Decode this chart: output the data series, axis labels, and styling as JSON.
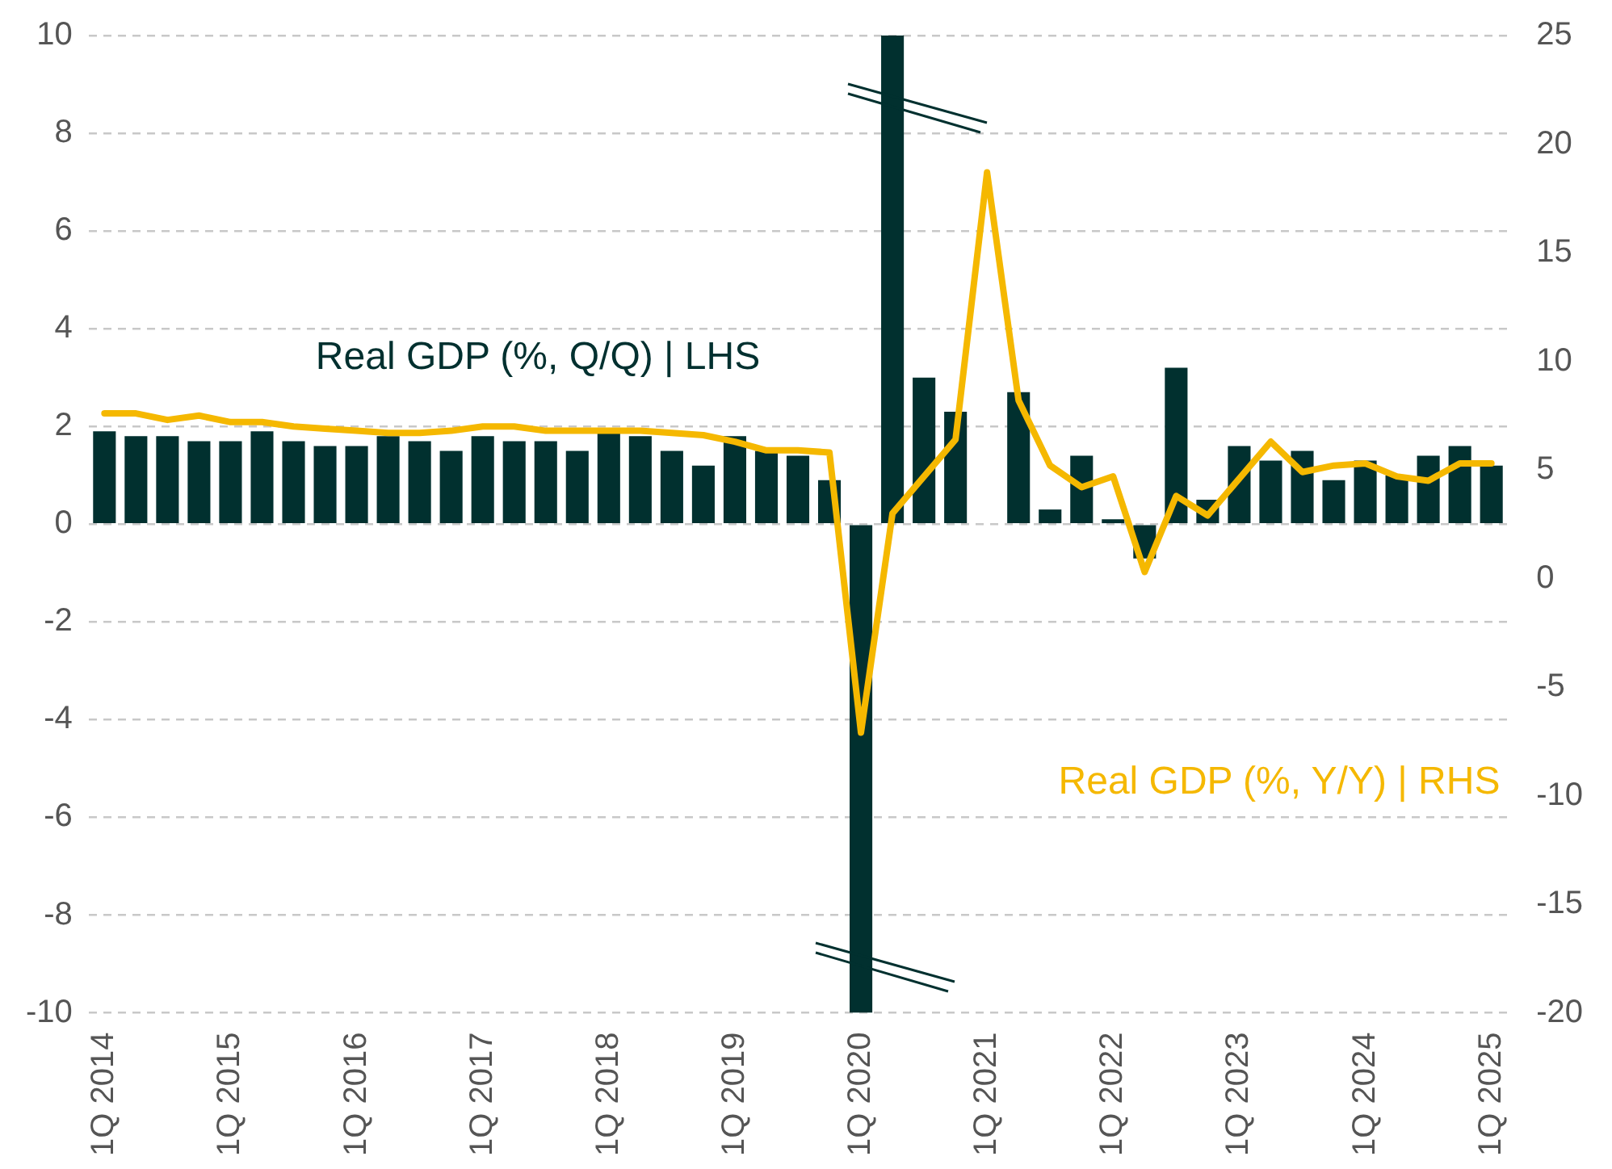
{
  "chart_data": {
    "type": "bar",
    "categories": [
      "1Q 2014",
      null,
      null,
      null,
      "1Q 2015",
      null,
      null,
      null,
      "1Q 2016",
      null,
      null,
      null,
      "1Q 2017",
      null,
      null,
      null,
      "1Q 2018",
      null,
      null,
      null,
      "1Q 2019",
      null,
      null,
      null,
      "1Q 2020",
      null,
      null,
      null,
      "1Q 2021",
      null,
      null,
      null,
      "1Q 2022",
      null,
      null,
      null,
      "1Q 2023",
      null,
      null,
      null,
      "1Q 2024",
      null,
      null,
      null,
      "1Q 2025"
    ],
    "series": [
      {
        "name": "Real GDP (%, Q/Q) | LHS",
        "color": "#01302f",
        "values": [
          1.9,
          1.8,
          1.8,
          1.7,
          1.7,
          1.9,
          1.7,
          1.6,
          1.6,
          1.8,
          1.7,
          1.5,
          1.8,
          1.7,
          1.7,
          1.5,
          1.9,
          1.8,
          1.5,
          1.2,
          1.8,
          1.5,
          1.4,
          0.9,
          -10,
          10,
          3.0,
          2.3,
          null,
          2.7,
          0.3,
          1.4,
          0.1,
          -0.7,
          3.2,
          0.5,
          1.6,
          1.3,
          1.5,
          0.9,
          1.3,
          1.0,
          1.4,
          1.6,
          1.2
        ]
      },
      {
        "name": "Real GDP (%, Y/Y) | RHS",
        "type": "line",
        "axis": "y2",
        "color": "#f5b800",
        "values": [
          7.6,
          7.6,
          7.3,
          7.5,
          7.2,
          7.2,
          7.0,
          6.9,
          6.8,
          6.7,
          6.7,
          6.8,
          7.0,
          7.0,
          6.8,
          6.8,
          6.8,
          6.8,
          6.7,
          6.6,
          6.3,
          5.9,
          5.9,
          5.8,
          -7.1,
          3.0,
          4.7,
          6.4,
          18.7,
          8.2,
          5.2,
          4.2,
          4.7,
          0.3,
          3.8,
          2.9,
          4.6,
          6.3,
          4.9,
          5.2,
          5.3,
          4.7,
          4.5,
          5.3,
          5.3
        ]
      }
    ],
    "ylim": [
      -10,
      10
    ],
    "yticks": [
      -10,
      -8,
      -6,
      -4,
      -2,
      0,
      2,
      4,
      6,
      8,
      10
    ],
    "y2lim": [
      -20,
      25
    ],
    "y2ticks": [
      -20,
      -15,
      -10,
      -5,
      0,
      5,
      10,
      15,
      20,
      25
    ],
    "grid": "y",
    "legend": false,
    "marker": "none",
    "line_style": "solid"
  }
}
